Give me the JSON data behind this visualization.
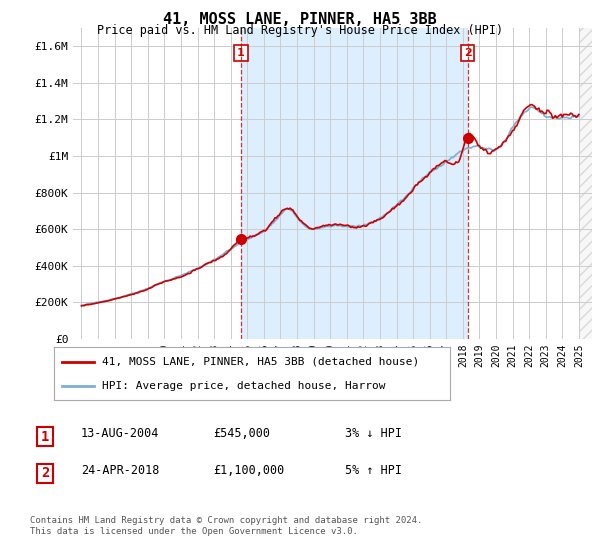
{
  "title": "41, MOSS LANE, PINNER, HA5 3BB",
  "subtitle": "Price paid vs. HM Land Registry's House Price Index (HPI)",
  "legend_line1": "41, MOSS LANE, PINNER, HA5 3BB (detached house)",
  "legend_line2": "HPI: Average price, detached house, Harrow",
  "annotation1_label": "1",
  "annotation1_date": "13-AUG-2004",
  "annotation1_price": "£545,000",
  "annotation1_hpi": "3% ↓ HPI",
  "annotation1_year": 2004.62,
  "annotation1_value": 545000,
  "annotation2_label": "2",
  "annotation2_date": "24-APR-2018",
  "annotation2_price": "£1,100,000",
  "annotation2_hpi": "5% ↑ HPI",
  "annotation2_year": 2018.3,
  "annotation2_value": 1100000,
  "footer": "Contains HM Land Registry data © Crown copyright and database right 2024.\nThis data is licensed under the Open Government Licence v3.0.",
  "ylim": [
    0,
    1700000
  ],
  "yticks": [
    0,
    200000,
    400000,
    600000,
    800000,
    1000000,
    1200000,
    1400000,
    1600000
  ],
  "ytick_labels": [
    "£0",
    "£200K",
    "£400K",
    "£600K",
    "£800K",
    "£1M",
    "£1.2M",
    "£1.4M",
    "£1.6M"
  ],
  "red_color": "#cc0000",
  "blue_color": "#7bafd4",
  "shade_color": "#ddeeff",
  "background_color": "#ffffff",
  "grid_color": "#cccccc",
  "xlim_left": 1994.5,
  "xlim_right": 2025.8,
  "hatch_start": 2025.0
}
